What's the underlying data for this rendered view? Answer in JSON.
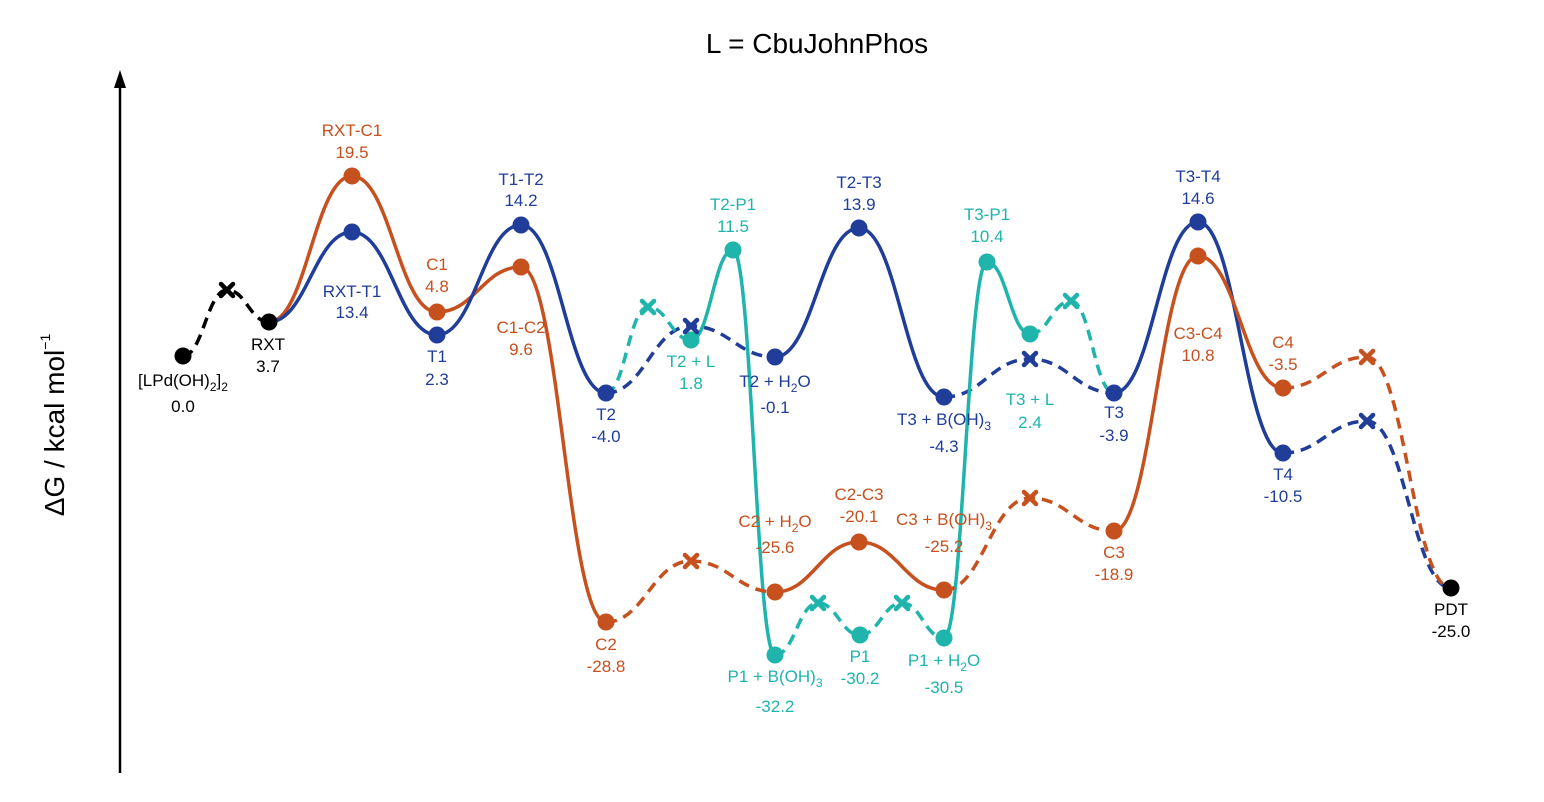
{
  "title": "L = CbuJohnPhos",
  "y_axis": {
    "label": "ΔG / kcal mol",
    "superscript": "−1"
  },
  "colors": {
    "black": "#000000",
    "orange": "#c6501e",
    "blue": "#1f3d99",
    "teal": "#1fb4ac"
  },
  "chart_data": {
    "type": "energy-profile",
    "units": "kcal/mol",
    "states": {
      "LPdOH2": {
        "name": [
          "[LPd(OH)",
          {
            "sub": "2"
          },
          "]",
          {
            "sub": "2"
          }
        ],
        "value": "0.0",
        "color": "black"
      },
      "RXT": {
        "name": "RXT",
        "value": "3.7",
        "color": "black"
      },
      "RXT-C1": {
        "name": "RXT-C1",
        "value": "19.5",
        "color": "orange"
      },
      "RXT-T1": {
        "name": "RXT-T1",
        "value": "13.4",
        "color": "blue"
      },
      "C1": {
        "name": "C1",
        "value": "4.8",
        "color": "orange"
      },
      "T1": {
        "name": "T1",
        "value": "2.3",
        "color": "blue"
      },
      "T1-T2": {
        "name": "T1-T2",
        "value": "14.2",
        "color": "blue"
      },
      "C1-C2": {
        "name": "C1-C2",
        "value": "9.6",
        "color": "orange"
      },
      "T2": {
        "name": "T2",
        "value": "-4.0",
        "color": "blue"
      },
      "T2+L": {
        "name": "T2 + L",
        "value": "1.8",
        "color": "teal"
      },
      "T2-P1": {
        "name": "T2-P1",
        "value": "11.5",
        "color": "teal"
      },
      "T2+H2O": {
        "name": [
          "T2 + H",
          {
            "sub": "2"
          },
          "O"
        ],
        "value": "-0.1",
        "color": "blue"
      },
      "T2-T3": {
        "name": "T2-T3",
        "value": "13.9",
        "color": "blue"
      },
      "T3+BOH3": {
        "name": [
          "T3 + B(OH)",
          {
            "sub": "3"
          }
        ],
        "value": "-4.3",
        "color": "blue"
      },
      "T3-P1": {
        "name": "T3-P1",
        "value": "10.4",
        "color": "teal"
      },
      "T3+L": {
        "name": "T3 + L",
        "value": "2.4",
        "color": "teal"
      },
      "T3": {
        "name": "T3",
        "value": "-3.9",
        "color": "blue"
      },
      "T3-T4": {
        "name": "T3-T4",
        "value": "14.6",
        "color": "blue"
      },
      "C3-C4": {
        "name": "C3-C4",
        "value": "10.8",
        "color": "orange"
      },
      "C4": {
        "name": "C4",
        "value": "-3.5",
        "color": "orange"
      },
      "T4": {
        "name": "T4",
        "value": "-10.5",
        "color": "blue"
      },
      "C2": {
        "name": "C2",
        "value": "-28.8",
        "color": "orange"
      },
      "C2+H2O": {
        "name": [
          "C2 + H",
          {
            "sub": "2"
          },
          "O"
        ],
        "value": "-25.6",
        "color": "orange"
      },
      "C2-C3": {
        "name": "C2-C3",
        "value": "-20.1",
        "color": "orange"
      },
      "C3+BOH3": {
        "name": [
          "C3 + B(OH)",
          {
            "sub": "3"
          }
        ],
        "value": "-25.2",
        "color": "orange"
      },
      "C3": {
        "name": "C3",
        "value": "-18.9",
        "color": "orange"
      },
      "P1+BOH3": {
        "name": [
          "P1 + B(OH)",
          {
            "sub": "3"
          }
        ],
        "value": "-32.2",
        "color": "teal"
      },
      "P1": {
        "name": "P1",
        "value": "-30.2",
        "color": "teal"
      },
      "P1+H2O": {
        "name": [
          "P1 + H",
          {
            "sub": "2"
          },
          "O"
        ],
        "value": "-30.5",
        "color": "teal"
      },
      "PDT": {
        "name": "PDT",
        "value": "-25.0",
        "color": "black"
      }
    }
  }
}
